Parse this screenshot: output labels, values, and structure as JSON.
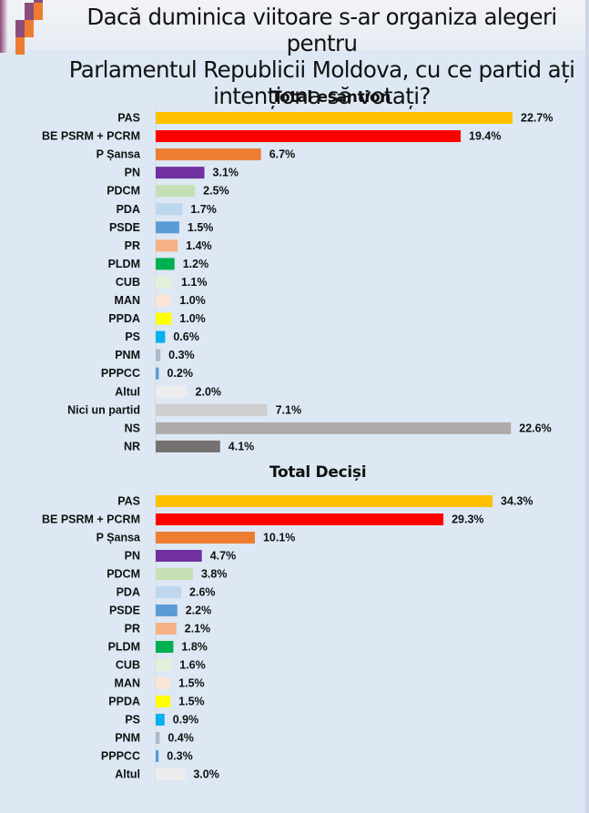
{
  "title": "Dacă duminica viitoare s-ar organiza alegeri pentru Parlamentul Republicii Moldova, cu ce partid ați intenționa să votați?",
  "title_lines": [
    "Dacă duminica viitoare s-ar organiza alegeri pentru",
    "Parlamentul Republicii Moldova, cu ce partid ați",
    "intenționa să votați?"
  ],
  "colors": {
    "PAS": "#ffc000",
    "BE PSRM + PCRM": "#ff0000",
    "P Șansa": "#ed7d31",
    "PN": "#7030a0",
    "PDCM": "#c5e0b4",
    "PDA": "#bdd7ee",
    "PSDE": "#5b9bd5",
    "PR": "#f4b183",
    "PLDM": "#00b050",
    "CUB": "#e2f0d9",
    "MAN": "#fbe5d6",
    "PPDA": "#ffff00",
    "PS": "#00b0f0",
    "PNM": "#adb9ca",
    "PPPCC": "#5b9bd5",
    "Altul": "#ededed",
    "Nici un partid": "#d0cece",
    "NS": "#aeaaaa",
    "NR": "#767171"
  },
  "chart_data": [
    {
      "type": "bar",
      "orientation": "horizontal",
      "title": "Total esantion",
      "xlabel": "",
      "ylabel": "",
      "unit": "%",
      "xlim": [
        0,
        22.7
      ],
      "grid": false,
      "legend": "none",
      "categories": [
        "PAS",
        "BE PSRM + PCRM",
        "P Șansa",
        "PN",
        "PDCM",
        "PDA",
        "PSDE",
        "PR",
        "PLDM",
        "CUB",
        "MAN",
        "PPDA",
        "PS",
        "PNM",
        "PPPCC",
        "Altul",
        "Nici un partid",
        "NS",
        "NR"
      ],
      "values": [
        22.7,
        19.4,
        6.7,
        3.1,
        2.5,
        1.7,
        1.5,
        1.4,
        1.2,
        1.1,
        1.0,
        1.0,
        0.6,
        0.3,
        0.2,
        2.0,
        7.1,
        22.6,
        4.1
      ],
      "labels": [
        "22.7%",
        "19.4%",
        "6.7%",
        "3.1%",
        "2.5%",
        "1.7%",
        "1.5%",
        "1.4%",
        "1.2%",
        "1.1%",
        "1.0%",
        "1.0%",
        "0.6%",
        "0.3%",
        "0.2%",
        "2.0%",
        "7.1%",
        "22.6%",
        "4.1%"
      ]
    },
    {
      "type": "bar",
      "orientation": "horizontal",
      "title": "Total Deciși",
      "xlabel": "",
      "ylabel": "",
      "unit": "%",
      "xlim": [
        0,
        34.3
      ],
      "grid": false,
      "legend": "none",
      "categories": [
        "PAS",
        "BE PSRM + PCRM",
        "P Șansa",
        "PN",
        "PDCM",
        "PDA",
        "PSDE",
        "PR",
        "PLDM",
        "CUB",
        "MAN",
        "PPDA",
        "PS",
        "PNM",
        "PPPCC",
        "Altul"
      ],
      "values": [
        34.3,
        29.3,
        10.1,
        4.7,
        3.8,
        2.6,
        2.2,
        2.1,
        1.8,
        1.6,
        1.5,
        1.5,
        0.9,
        0.4,
        0.3,
        3.0
      ],
      "labels": [
        "34.3%",
        "29.3%",
        "10.1%",
        "4.7%",
        "3.8%",
        "2.6%",
        "2.2%",
        "2.1%",
        "1.8%",
        "1.6%",
        "1.5%",
        "1.5%",
        "0.9%",
        "0.4%",
        "0.3%",
        "3.0%"
      ]
    }
  ]
}
